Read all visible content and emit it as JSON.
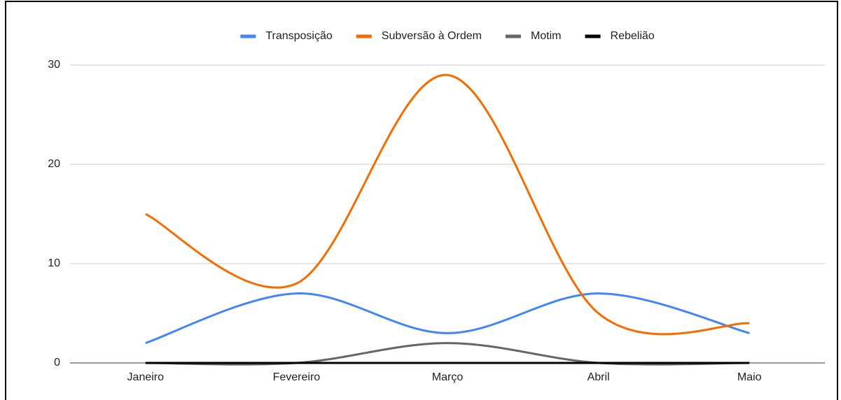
{
  "chart_data": {
    "type": "line",
    "categories": [
      "Janeiro",
      "Fevereiro",
      "Março",
      "Abril",
      "Maio"
    ],
    "series": [
      {
        "name": "Transposição",
        "color": "#4285f4",
        "values": [
          2,
          7,
          3,
          7,
          3
        ]
      },
      {
        "name": "Subversão à Ordem",
        "color": "#f46d00",
        "values": [
          15,
          8,
          29,
          5,
          4
        ]
      },
      {
        "name": "Motim",
        "color": "#666666",
        "values": [
          0,
          0,
          2,
          0,
          0
        ]
      },
      {
        "name": "Rebelião",
        "color": "#000000",
        "values": [
          0,
          0,
          0,
          0,
          0
        ]
      }
    ],
    "ylim": [
      0,
      30
    ],
    "yticks": [
      0,
      10,
      20,
      30
    ],
    "grid": true,
    "smooth": true,
    "legend": "top"
  }
}
